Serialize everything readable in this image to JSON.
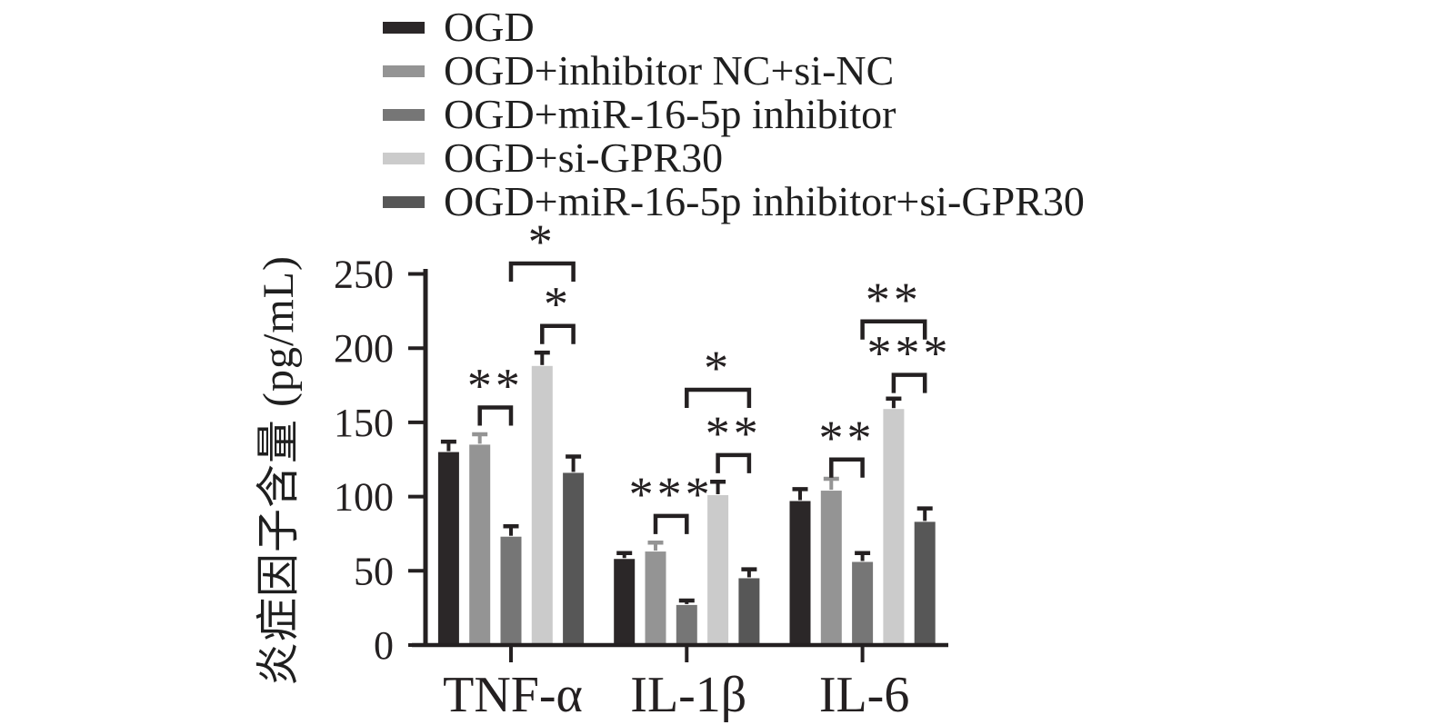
{
  "figure": {
    "background": "#ffffff",
    "ink_color": "#242021"
  },
  "legend": {
    "items": [
      {
        "label": "OGD",
        "color": "#2b2728"
      },
      {
        "label": "OGD+inhibitor NC+si-NC",
        "color": "#949494"
      },
      {
        "label": "OGD+miR-16-5p inhibitor",
        "color": "#767676"
      },
      {
        "label": "OGD+si-GPR30",
        "color": "#cbcbcb"
      },
      {
        "label": "OGD+miR-16-5p inhibitor+si-GPR30",
        "color": "#575757"
      }
    ]
  },
  "chart_data": {
    "type": "bar",
    "title": "",
    "xlabel": "",
    "ylabel": "炎症因子含量 (pg/mL)",
    "ylim": [
      0,
      250
    ],
    "yticks": [
      "0",
      "50",
      "100",
      "150",
      "200",
      "250"
    ],
    "grid": false,
    "legend_position": "top-left",
    "categories": [
      "TNF-α",
      "IL-1β",
      "IL-6"
    ],
    "series": [
      {
        "name": "OGD",
        "color": "#2b2728",
        "error_color": "#242021",
        "values": [
          130,
          58,
          97
        ],
        "errors": [
          7,
          4,
          8
        ]
      },
      {
        "name": "OGD+inhibitor NC+si-NC",
        "color": "#949494",
        "error_color": "#949494",
        "values": [
          135,
          63,
          104
        ],
        "errors": [
          7,
          6,
          8
        ]
      },
      {
        "name": "OGD+miR-16-5p inhibitor",
        "color": "#767676",
        "error_color": "#242021",
        "values": [
          73,
          27,
          56
        ],
        "errors": [
          7,
          3,
          6
        ]
      },
      {
        "name": "OGD+si-GPR30",
        "color": "#cbcbcb",
        "error_color": "#242021",
        "values": [
          188,
          101,
          159
        ],
        "errors": [
          9,
          9,
          7
        ]
      },
      {
        "name": "OGD+miR-16-5p inhibitor+si-GPR30",
        "color": "#575757",
        "error_color": "#242021",
        "values": [
          116,
          45,
          83
        ],
        "errors": [
          11,
          6,
          9
        ]
      }
    ],
    "significance": [
      {
        "group": "TNF-α",
        "group_index": 0,
        "between_series": [
          1,
          2
        ],
        "label": "**",
        "bracket_y": 160
      },
      {
        "group": "TNF-α",
        "group_index": 0,
        "between_series": [
          2,
          4
        ],
        "label": "*",
        "bracket_y": 257
      },
      {
        "group": "TNF-α",
        "group_index": 0,
        "between_series": [
          3,
          4
        ],
        "label": "*",
        "bracket_y": 215
      },
      {
        "group": "IL-1β",
        "group_index": 1,
        "between_series": [
          1,
          2
        ],
        "label": "***",
        "bracket_y": 87
      },
      {
        "group": "IL-1β",
        "group_index": 1,
        "between_series": [
          3,
          4
        ],
        "label": "**",
        "bracket_y": 128
      },
      {
        "group": "IL-1β",
        "group_index": 1,
        "between_series": [
          2,
          4
        ],
        "label": "*",
        "bracket_y": 172
      },
      {
        "group": "IL-6",
        "group_index": 2,
        "between_series": [
          1,
          2
        ],
        "label": "**",
        "bracket_y": 125
      },
      {
        "group": "IL-6",
        "group_index": 2,
        "between_series": [
          3,
          4
        ],
        "label": "***",
        "bracket_y": 182
      },
      {
        "group": "IL-6",
        "group_index": 2,
        "between_series": [
          2,
          4
        ],
        "label": "**",
        "bracket_y": 218
      }
    ]
  }
}
